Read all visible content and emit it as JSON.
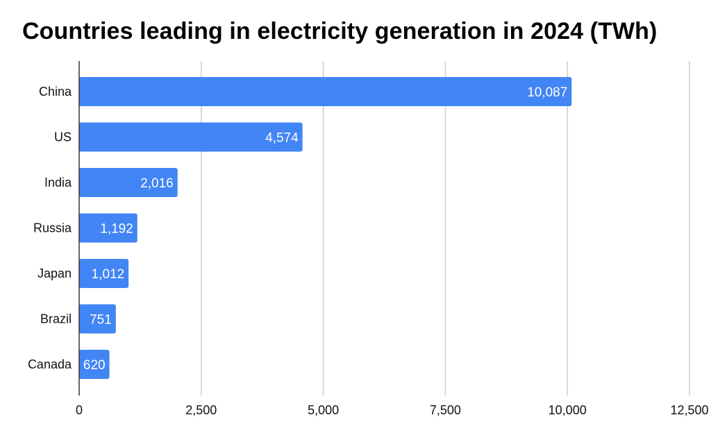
{
  "chart_data": {
    "type": "bar",
    "orientation": "horizontal",
    "title": "Countries leading in electricity generation in 2024 (TWh)",
    "categories": [
      "China",
      "US",
      "India",
      "Russia",
      "Japan",
      "Brazil",
      "Canada"
    ],
    "values": [
      10087,
      4574,
      2016,
      1192,
      1012,
      751,
      620
    ],
    "value_labels": [
      "10,087",
      "4,574",
      "2,016",
      "1,192",
      "1,012",
      "751",
      "620"
    ],
    "xlim": [
      0,
      12500
    ],
    "xticks": [
      0,
      2500,
      5000,
      7500,
      10000,
      12500
    ],
    "xtick_labels": [
      "0",
      "2,500",
      "5,000",
      "7,500",
      "10,000",
      "12,500"
    ],
    "grid": "vertical",
    "legend": "none",
    "bar_color": "#4285f4",
    "grid_color": "#cccccc"
  }
}
